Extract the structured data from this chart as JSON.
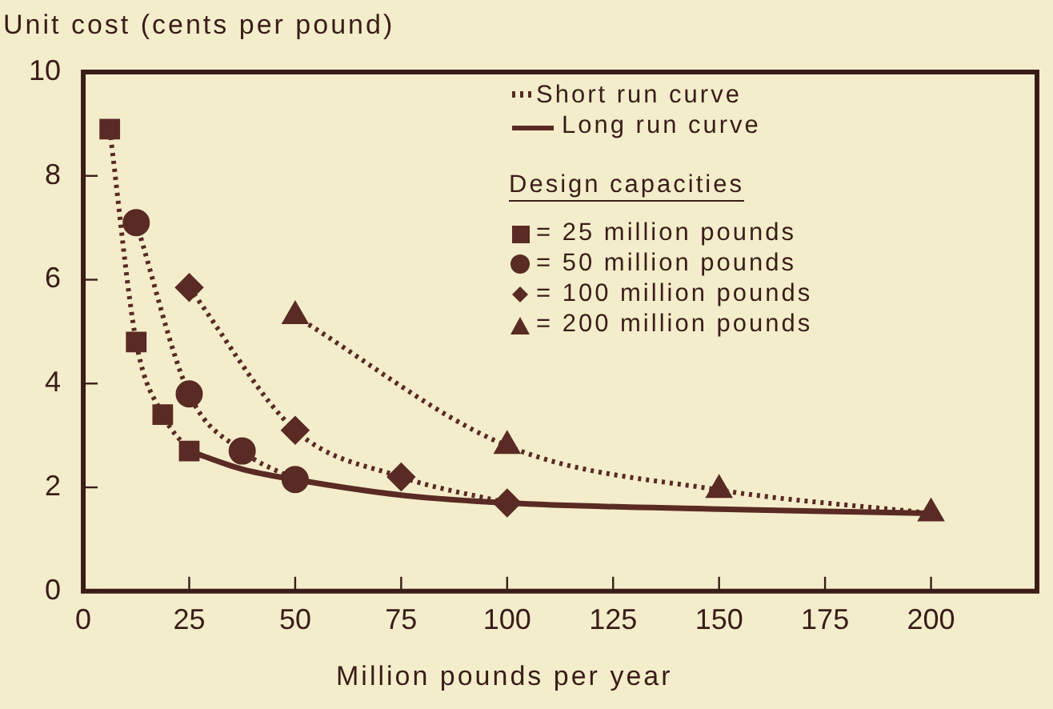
{
  "chart_data": {
    "type": "line",
    "xlabel": "Million pounds per year",
    "ylabel": "Unit cost (cents per pound)",
    "legend_title": "Design capacities",
    "legend": "top right",
    "grid": false,
    "xlim": [
      0,
      225
    ],
    "ylim": [
      0,
      10
    ],
    "xticks": [
      0,
      25,
      50,
      75,
      100,
      125,
      150,
      175,
      200
    ],
    "yticks": [
      0,
      2,
      4,
      6,
      8,
      10
    ],
    "annotations": [
      "Short run curve"
    ],
    "series": [
      {
        "name": "= 25  million  pounds",
        "color": "#5a2a24",
        "x": [
          6.25,
          12.5,
          18.75,
          25
        ],
        "values": [
          8.9,
          4.8,
          3.4,
          2.7
        ],
        "marker": "square",
        "line_style": "dotted"
      },
      {
        "name": "= 50  million  pounds",
        "color": "#5a2a24",
        "x": [
          12.5,
          25,
          37.5,
          50
        ],
        "values": [
          7.1,
          3.8,
          2.7,
          2.15
        ],
        "marker": "circle",
        "line_style": "dotted"
      },
      {
        "name": "= 100  million  pounds",
        "color": "#5a2a24",
        "x": [
          25,
          50,
          75,
          100
        ],
        "values": [
          5.85,
          3.1,
          2.2,
          1.7
        ],
        "marker": "diamond",
        "line_style": "dotted"
      },
      {
        "name": "= 200  million  pounds",
        "color": "#5a2a24",
        "x": [
          50,
          100,
          150,
          200
        ],
        "values": [
          5.3,
          2.8,
          1.95,
          1.5
        ],
        "marker": "triangle",
        "line_style": "dotted"
      },
      {
        "name": "Long run curve",
        "color": "#5a2a24",
        "x": [
          25,
          37.5,
          50,
          75,
          100,
          150,
          200
        ],
        "values": [
          2.7,
          2.35,
          2.15,
          1.85,
          1.7,
          1.58,
          1.5
        ],
        "marker": "none",
        "line_style": "solid"
      }
    ]
  }
}
